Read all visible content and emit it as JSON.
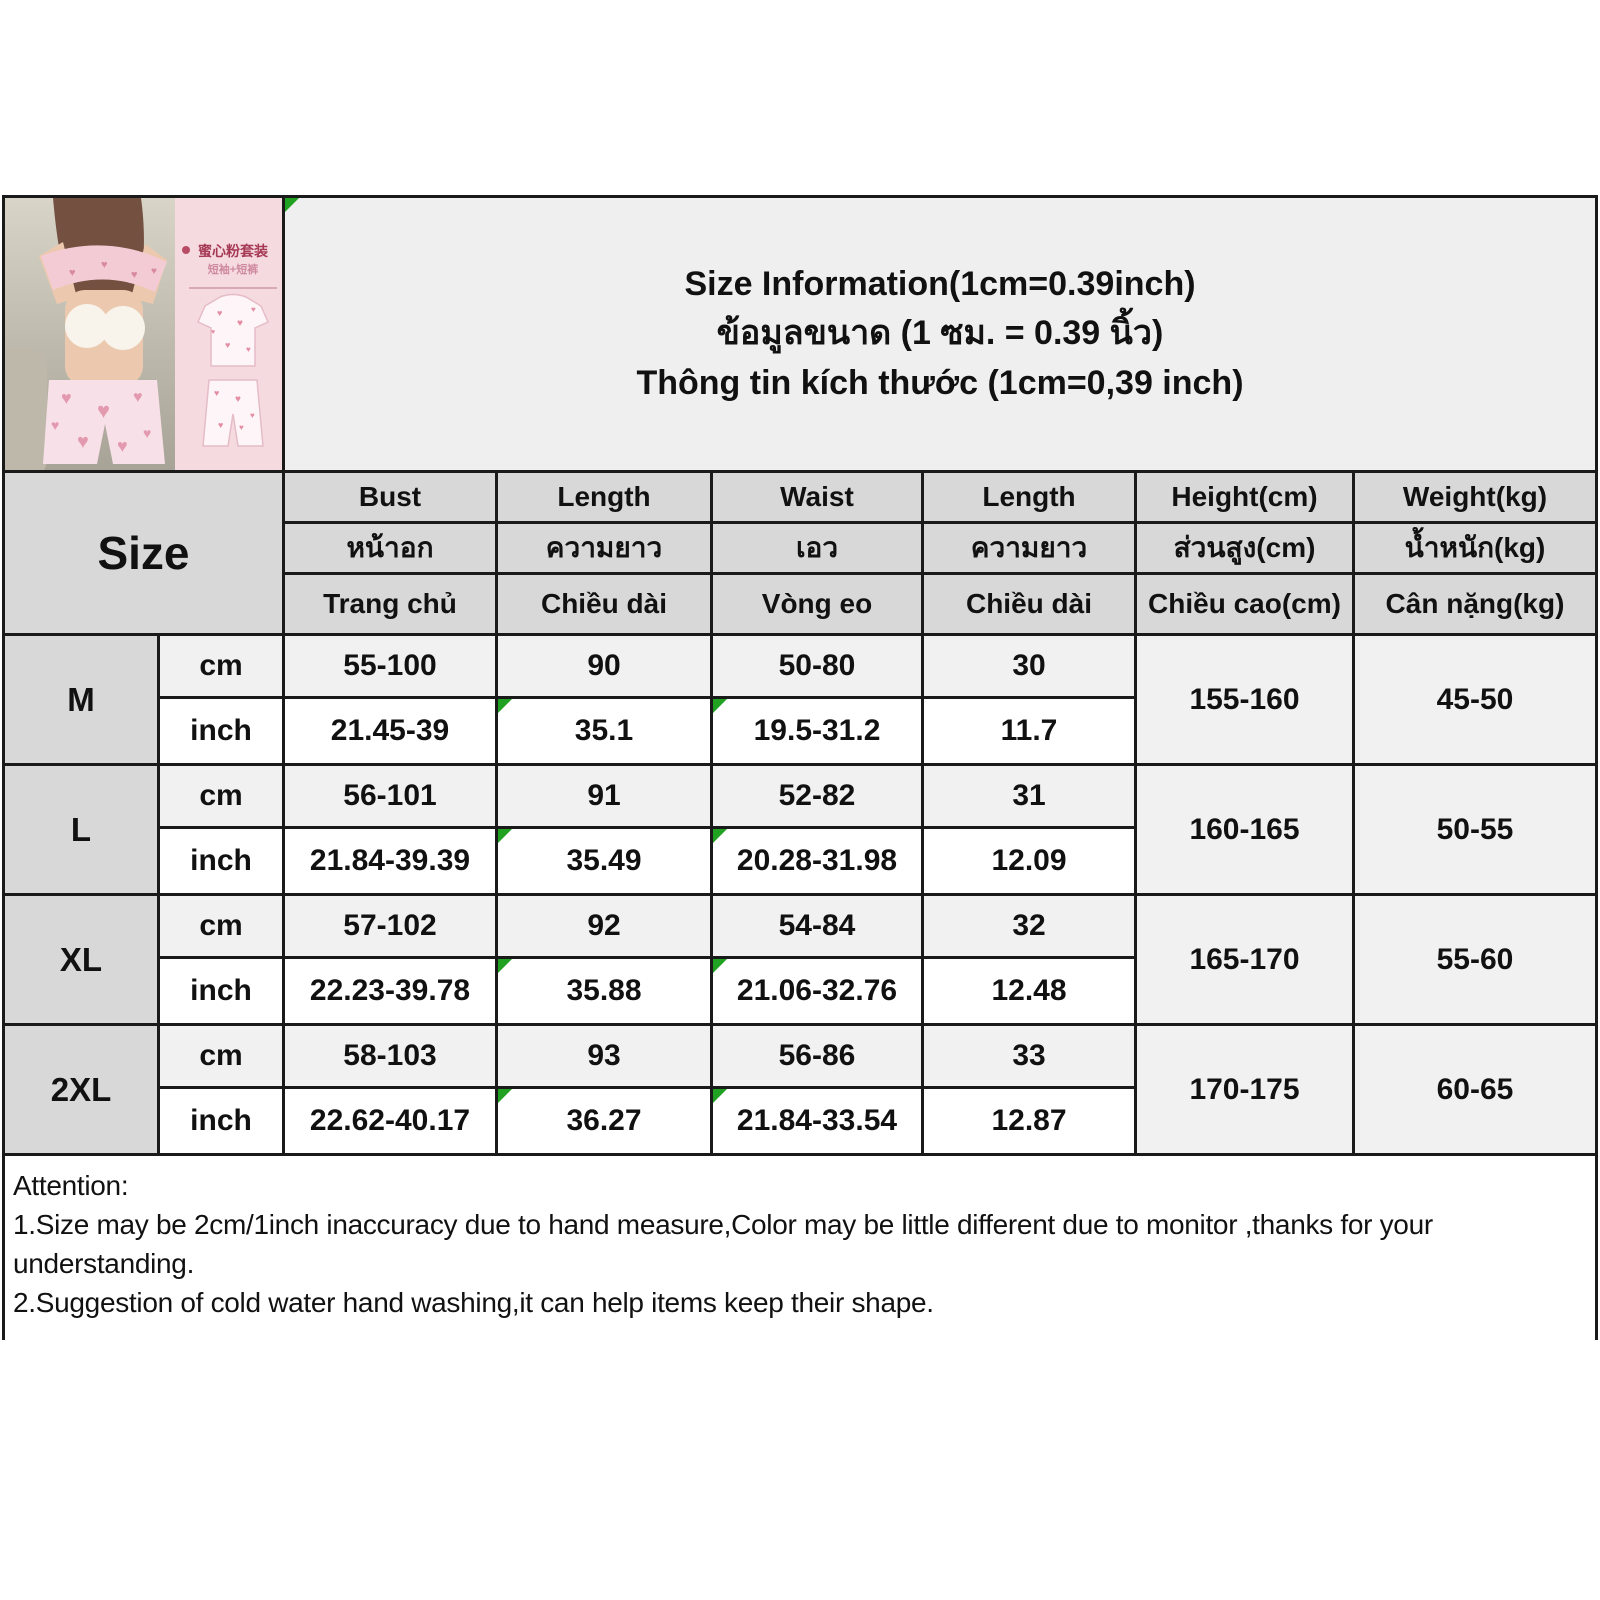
{
  "title": {
    "en": "Size Information(1cm=0.39inch)",
    "th": "ข้อมูลขนาด (1 ซม. = 0.39 นิ้ว)",
    "vi": "Thông tin kích thước (1cm=0,39 inch)"
  },
  "product_badge": {
    "line1": "蜜心粉套装",
    "line2": "短袖+短裤"
  },
  "table": {
    "size_label": "Size",
    "units": {
      "cm": "cm",
      "inch": "inch"
    },
    "columns": [
      {
        "en": "Bust",
        "th": "หน้าอก",
        "vi": "Trang chủ"
      },
      {
        "en": "Length",
        "th": "ความยาว",
        "vi": "Chiều dài"
      },
      {
        "en": "Waist",
        "th": "เอว",
        "vi": "Vòng eo"
      },
      {
        "en": "Length",
        "th": "ความยาว",
        "vi": "Chiều dài"
      },
      {
        "en": "Height(cm)",
        "th": "ส่วนสูง(cm)",
        "vi": "Chiều cao(cm)"
      },
      {
        "en": "Weight(kg)",
        "th": "น้ำหนัก(kg)",
        "vi": "Cân nặng(kg)"
      }
    ],
    "rows": [
      {
        "size": "M",
        "cm": [
          "55-100",
          "90",
          "50-80",
          "30"
        ],
        "inch": [
          "21.45-39",
          "35.1",
          "19.5-31.2",
          "11.7"
        ],
        "height": "155-160",
        "weight": "45-50"
      },
      {
        "size": "L",
        "cm": [
          "56-101",
          "91",
          "52-82",
          "31"
        ],
        "inch": [
          "21.84-39.39",
          "35.49",
          "20.28-31.98",
          "12.09"
        ],
        "height": "160-165",
        "weight": "50-55"
      },
      {
        "size": "XL",
        "cm": [
          "57-102",
          "92",
          "54-84",
          "32"
        ],
        "inch": [
          "22.23-39.78",
          "35.88",
          "21.06-32.76",
          "12.48"
        ],
        "height": "165-170",
        "weight": "55-60"
      },
      {
        "size": "2XL",
        "cm": [
          "58-103",
          "93",
          "56-86",
          "33"
        ],
        "inch": [
          "22.62-40.17",
          "36.27",
          "21.84-33.54",
          "12.87"
        ],
        "height": "170-175",
        "weight": "60-65"
      }
    ]
  },
  "attention": {
    "heading": "Attention:",
    "line1": "1.Size may be 2cm/1inch inaccuracy due to hand measure,Color may be little different due to monitor ,thanks for your understanding.",
    "line2": "2.Suggestion of cold water hand washing,it can help items keep their shape."
  },
  "icons": {
    "heart": "♥"
  },
  "colors": {
    "gridline": "#1a1a1a",
    "header_bg": "#d8d8d8",
    "light_row_bg": "#f1f1f1",
    "title_bg": "#efefef",
    "flag_green": "#21a121",
    "badge_pink_bg": "#f5dae0",
    "badge_text": "#a63a55"
  }
}
